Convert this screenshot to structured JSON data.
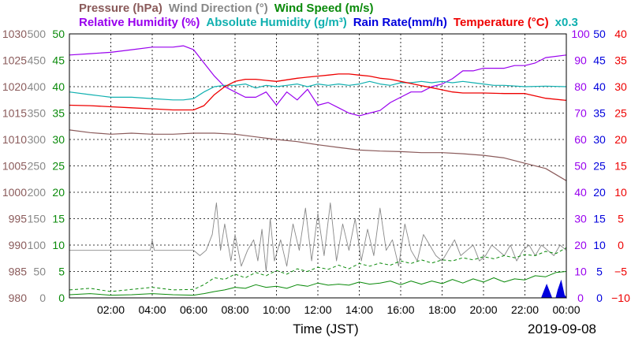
{
  "chart_data": {
    "type": "line",
    "date_label": "2019-09-08",
    "xlabel": "Time (JST)",
    "x_ticks": [
      "02:00",
      "04:00",
      "06:00",
      "08:00",
      "10:00",
      "12:00",
      "14:00",
      "16:00",
      "18:00",
      "20:00",
      "22:00",
      "00:00"
    ],
    "x_range_hours": [
      0,
      24
    ],
    "legend_row1": [
      {
        "text": "Pressure (hPa)",
        "color": "#8a5a5a"
      },
      {
        "text": "Wind Direction (°)",
        "color": "#888888"
      },
      {
        "text": "Wind Speed (m/s)",
        "color": "#0a8a0a"
      }
    ],
    "legend_row2": [
      {
        "text": "Relative Humidity (%)",
        "color": "#9900ee"
      },
      {
        "text": "Absolute Humidity (g/m³)",
        "color": "#10b0b0"
      },
      {
        "text": "Rain Rate(mm/h)",
        "color": "#0000dd"
      },
      {
        "text": "Temperature (°C)",
        "color": "#ee0000"
      },
      {
        "text": "x0.3",
        "color": "#10b0b0"
      }
    ],
    "axes": {
      "pressure": {
        "min": 980,
        "max": 1030,
        "ticks": [
          "980",
          "985",
          "990",
          "995",
          "1000",
          "1005",
          "1010",
          "1015",
          "1020",
          "1025",
          "1030"
        ],
        "color": "#8a5a5a"
      },
      "wind_direction": {
        "min": 0,
        "max": 500,
        "ticks": [
          "0",
          "50",
          "100",
          "150",
          "200",
          "250",
          "300",
          "350",
          "400",
          "450",
          "500"
        ],
        "color": "#888888"
      },
      "wind_speed": {
        "min": 0,
        "max": 50,
        "ticks": [
          "0",
          "5",
          "10",
          "15",
          "20",
          "25",
          "30",
          "35",
          "40",
          "45",
          "50"
        ],
        "color": "#0a8a0a"
      },
      "humidity": {
        "min": 0,
        "max": 100,
        "ticks": [
          "0",
          "10",
          "20",
          "30",
          "40",
          "50",
          "60",
          "70",
          "80",
          "90",
          "100"
        ],
        "color": "#9900ee"
      },
      "rain": {
        "min": 0,
        "max": 50,
        "ticks": [
          "0",
          "5",
          "10",
          "15",
          "20",
          "25",
          "30",
          "35",
          "40",
          "45",
          "50"
        ],
        "color": "#0000dd"
      },
      "temperature": {
        "min": -10,
        "max": 40,
        "ticks": [
          "−10",
          "−5",
          "0",
          "5",
          "10",
          "15",
          "20",
          "25",
          "30",
          "35",
          "40"
        ],
        "color": "#ee0000"
      }
    },
    "series": [
      {
        "name": "Pressure (hPa)",
        "axis": "pressure",
        "color": "#8a5a5a",
        "x": [
          0,
          1,
          2,
          3,
          4,
          5,
          6,
          7,
          8,
          9,
          10,
          11,
          12,
          13,
          14,
          15,
          16,
          17,
          18,
          19,
          20,
          21,
          22,
          23,
          24
        ],
        "y": [
          1011.8,
          1011.3,
          1011.0,
          1011.2,
          1011.0,
          1011.0,
          1011.2,
          1011.2,
          1011.0,
          1010.5,
          1010.0,
          1009.6,
          1009.0,
          1008.5,
          1008.0,
          1007.8,
          1007.7,
          1007.5,
          1007.5,
          1007.3,
          1007.0,
          1006.5,
          1005.5,
          1004.5,
          1002.2
        ],
        "width": 1.2
      },
      {
        "name": "Relative Humidity (%)",
        "axis": "humidity",
        "color": "#9900ee",
        "x": [
          0,
          1,
          2,
          3,
          4,
          5,
          5.5,
          6,
          6.5,
          7,
          7.5,
          8,
          8.5,
          9,
          9.5,
          10,
          10.5,
          11,
          11.5,
          12,
          12.5,
          13,
          13.5,
          14,
          14.5,
          15,
          15.5,
          16,
          16.5,
          17,
          17.5,
          18,
          18.5,
          19,
          19.5,
          20,
          20.5,
          21,
          21.5,
          22,
          22.5,
          23,
          24
        ],
        "y": [
          92,
          92.5,
          93,
          94,
          95,
          95,
          95.5,
          94,
          89,
          84,
          80,
          78,
          76,
          76,
          78,
          73,
          78,
          75,
          79,
          73,
          74,
          72,
          70,
          69,
          70,
          71,
          74,
          76,
          78,
          78,
          80,
          81,
          83,
          86,
          86,
          87,
          87,
          87,
          88,
          88,
          89,
          91,
          92
        ],
        "width": 1.2
      },
      {
        "name": "Absolute Humidity (g/m³)",
        "axis": "humidity",
        "color": "#10b0b0",
        "x": [
          0,
          1,
          2,
          3,
          4,
          5,
          5.5,
          6,
          6.5,
          7,
          7.5,
          8,
          8.5,
          9,
          9.5,
          10,
          10.5,
          11,
          11.5,
          12,
          12.5,
          13,
          13.5,
          14,
          14.5,
          15,
          15.5,
          16,
          16.5,
          17,
          17.5,
          18,
          18.5,
          19,
          19.5,
          20,
          20.5,
          21,
          22,
          23,
          24
        ],
        "y": [
          78,
          77,
          76,
          76,
          75.5,
          75,
          75,
          75.5,
          78,
          80,
          80.5,
          80.5,
          81,
          79.5,
          80.5,
          80,
          80.5,
          81,
          80,
          81,
          80.5,
          81,
          80.5,
          81,
          82,
          81,
          80.5,
          81.5,
          81.5,
          82,
          81.5,
          82,
          81.5,
          82,
          81.5,
          81,
          80.5,
          80.5,
          80,
          80.2,
          80
        ],
        "width": 1.2
      },
      {
        "name": "Temperature (°C)",
        "axis": "temperature",
        "color": "#ee0000",
        "x": [
          0,
          1,
          2,
          3,
          4,
          5,
          6,
          6.5,
          7,
          7.5,
          8,
          8.5,
          9,
          9.5,
          10,
          10.5,
          11,
          11.5,
          12,
          12.5,
          13,
          13.5,
          14,
          14.5,
          15,
          15.5,
          16,
          16.5,
          17,
          17.5,
          18,
          18.5,
          19,
          20,
          21,
          22,
          23,
          24
        ],
        "y": [
          26.5,
          26.4,
          26.2,
          26.0,
          25.8,
          25.6,
          25.6,
          26.4,
          28.5,
          30.0,
          31.0,
          31.4,
          31.4,
          31.2,
          31.0,
          31.3,
          31.6,
          31.8,
          32.0,
          32.2,
          32.4,
          32.4,
          32.2,
          32.0,
          31.6,
          31.4,
          31.0,
          30.6,
          30.2,
          29.8,
          29.4,
          29.0,
          28.8,
          28.8,
          28.7,
          28.7,
          27.8,
          27.4
        ],
        "width": 1.3
      },
      {
        "name": "Wind Direction (°)",
        "axis": "wind_direction",
        "color": "#888888",
        "x": [
          0,
          0.5,
          1,
          1.5,
          2,
          2.5,
          3,
          3.5,
          3.9,
          4,
          4.1,
          4.5,
          5,
          5.5,
          6,
          6.3,
          6.6,
          6.9,
          7.1,
          7.3,
          7.5,
          7.8,
          8,
          8.3,
          8.6,
          8.9,
          9.1,
          9.3,
          9.5,
          9.7,
          9.9,
          10.2,
          10.5,
          10.8,
          11.1,
          11.4,
          11.7,
          12,
          12.3,
          12.6,
          12.9,
          13.2,
          13.5,
          13.8,
          14.1,
          14.4,
          14.7,
          15,
          15.3,
          15.6,
          15.9,
          16.2,
          16.5,
          16.8,
          17.1,
          17.4,
          17.7,
          18,
          18.3,
          18.6,
          18.9,
          19.2,
          19.5,
          19.8,
          20.1,
          20.4,
          20.7,
          21,
          21.3,
          21.6,
          21.9,
          22.2,
          22.5,
          22.8,
          23.1,
          23.4,
          23.7,
          24
        ],
        "y": [
          90,
          90,
          90,
          90,
          90,
          90,
          90,
          90,
          90,
          110,
          90,
          90,
          90,
          90,
          90,
          80,
          90,
          120,
          180,
          90,
          140,
          70,
          120,
          60,
          90,
          110,
          70,
          130,
          50,
          150,
          70,
          110,
          60,
          140,
          90,
          170,
          70,
          160,
          80,
          180,
          70,
          140,
          90,
          150,
          70,
          130,
          80,
          170,
          90,
          110,
          60,
          140,
          90,
          70,
          120,
          100,
          80,
          70,
          90,
          110,
          80,
          90,
          100,
          70,
          80,
          100,
          90,
          80,
          100,
          70,
          90,
          100,
          80,
          100,
          90,
          80,
          100,
          90
        ],
        "width": 0.9
      },
      {
        "name": "Wind Speed (m/s)",
        "axis": "wind_speed",
        "color": "#0a8a0a",
        "x": [
          0,
          1,
          2,
          3,
          4,
          5,
          6,
          6.5,
          7,
          7.5,
          8,
          8.5,
          9,
          9.5,
          10,
          10.5,
          11,
          11.5,
          12,
          12.5,
          13,
          13.5,
          14,
          14.5,
          15,
          15.5,
          16,
          16.5,
          17,
          17.5,
          18,
          18.5,
          19,
          19.5,
          20,
          20.5,
          21,
          21.5,
          22,
          22.5,
          23,
          23.5,
          24
        ],
        "y": [
          0.6,
          0.8,
          0.5,
          0.6,
          0.8,
          0.6,
          0.5,
          0.8,
          1.2,
          1.5,
          2.0,
          1.8,
          2.5,
          2.0,
          2.2,
          1.8,
          2.5,
          2.2,
          2.8,
          2.4,
          2.6,
          2.4,
          3.0,
          2.6,
          2.8,
          3.2,
          2.5,
          3.2,
          2.6,
          3.2,
          2.7,
          3.5,
          2.8,
          3.6,
          3.0,
          3.8,
          3.0,
          3.6,
          3.4,
          4.2,
          4.0,
          4.8,
          5.0
        ],
        "width": 1.0
      },
      {
        "name": "Wind Speed (m/s) gust",
        "axis": "wind_speed",
        "color": "#0a8a0a",
        "x": [
          0,
          1,
          2,
          3,
          4,
          5,
          6,
          6.5,
          7,
          7.5,
          8,
          8.5,
          9,
          9.5,
          10,
          10.5,
          11,
          11.5,
          12,
          12.5,
          13,
          13.5,
          14,
          14.5,
          15,
          15.5,
          16,
          16.5,
          17,
          17.5,
          18,
          18.5,
          19,
          19.5,
          20,
          20.5,
          21,
          21.5,
          22,
          22.5,
          23,
          23.5,
          24
        ],
        "y": [
          1.5,
          1.8,
          1.2,
          1.6,
          2.0,
          1.5,
          1.6,
          2.5,
          3.8,
          3.5,
          4.5,
          3.8,
          4.8,
          4.2,
          5.2,
          4.5,
          5.5,
          5.0,
          5.8,
          5.4,
          6.2,
          5.5,
          6.5,
          6.0,
          6.6,
          6.2,
          7.0,
          6.5,
          7.2,
          6.6,
          7.2,
          7.0,
          7.6,
          7.2,
          7.8,
          7.4,
          8.0,
          7.6,
          8.2,
          8.0,
          8.8,
          8.4,
          9.5
        ],
        "width": 1.0,
        "dashed": true
      },
      {
        "name": "Rain Rate(mm/h)",
        "axis": "rain",
        "color": "#0000dd",
        "x": [
          0,
          22.8,
          22.9,
          23.05,
          23.2,
          23.3,
          23.5,
          23.6,
          23.75,
          23.9,
          24
        ],
        "y": [
          0,
          0,
          1,
          2.5,
          1,
          0,
          0,
          1.5,
          3.2,
          0.5,
          0
        ],
        "width": 1.0,
        "filled": true
      }
    ]
  }
}
